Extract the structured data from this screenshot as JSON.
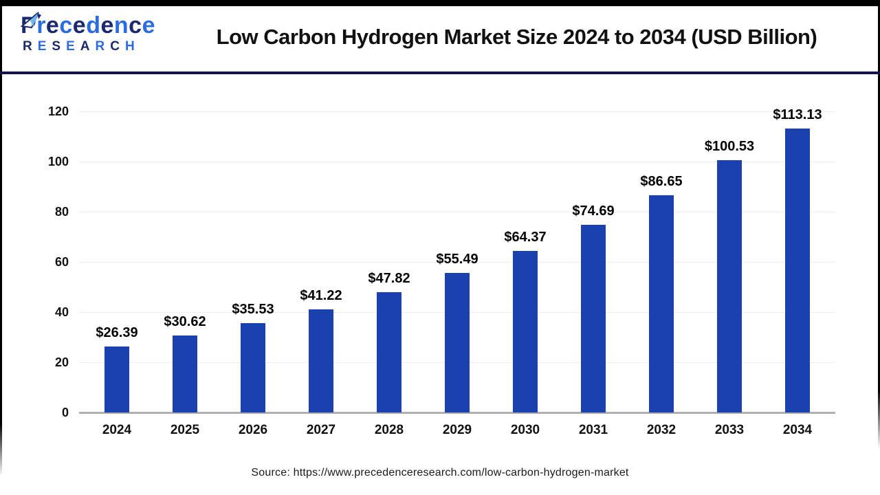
{
  "header": {
    "logo": {
      "brand": "Precedence",
      "subtitle": "RESEARCH",
      "navy": "#1b2a6e",
      "blue": "#2b6de0",
      "accent": "#6cb9ee"
    },
    "title": "Low Carbon Hydrogen Market Size 2024 to 2034 (USD Billion)"
  },
  "chart_data": {
    "type": "bar",
    "title": "Low Carbon Hydrogen Market Size 2024 to 2034 (USD Billion)",
    "categories": [
      "2024",
      "2025",
      "2026",
      "2027",
      "2028",
      "2029",
      "2030",
      "2031",
      "2032",
      "2033",
      "2034"
    ],
    "values": [
      26.39,
      30.62,
      35.53,
      41.22,
      47.82,
      55.49,
      64.37,
      74.69,
      86.65,
      100.53,
      113.13
    ],
    "value_prefix": "$",
    "xlabel": "",
    "ylabel": "",
    "ylim": [
      0,
      120
    ],
    "yticks": [
      0,
      20,
      40,
      60,
      80,
      100,
      120
    ],
    "bar_color": "#1a41ae",
    "grid": true,
    "legend_position": "none"
  },
  "footer": {
    "source": "Source: https://www.precedenceresearch.com/low-carbon-hydrogen-market"
  }
}
